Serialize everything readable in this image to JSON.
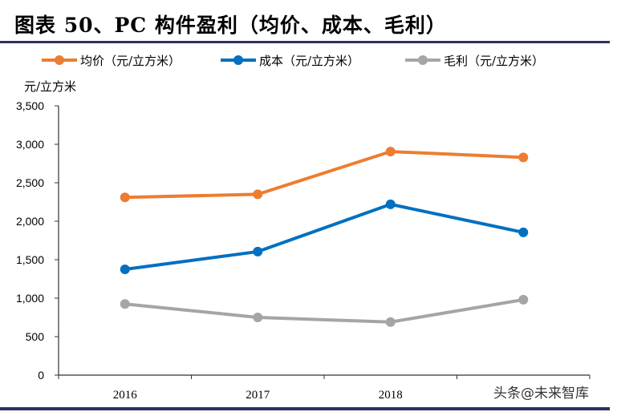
{
  "title": "图表 50、PC 构件盈利（均价、成本、毛利）",
  "watermark": "头条@未来智库",
  "chart_data": {
    "type": "line",
    "title": "图表 50、PC 构件盈利（均价、成本、毛利）",
    "ylabel": "元/立方米",
    "xlabel": "",
    "categories": [
      "2016",
      "2017",
      "2018",
      ""
    ],
    "ylim": [
      0,
      3500
    ],
    "yticks": [
      0,
      500,
      1000,
      1500,
      2000,
      2500,
      3000,
      3500
    ],
    "ytick_labels": [
      "0",
      "500",
      "1,000",
      "1,500",
      "2,000",
      "2,500",
      "3,000",
      "3,500"
    ],
    "grid": false,
    "legend_position": "top",
    "series": [
      {
        "name": "均价（元/立方米）",
        "color": "#ed7d31",
        "values": [
          2310,
          2350,
          2905,
          2830
        ]
      },
      {
        "name": "成本（元/立方米）",
        "color": "#0070c0",
        "values": [
          1375,
          1605,
          2220,
          1855
        ]
      },
      {
        "name": "毛利（元/立方米）",
        "color": "#a5a5a5",
        "values": [
          925,
          750,
          690,
          980
        ]
      }
    ]
  }
}
